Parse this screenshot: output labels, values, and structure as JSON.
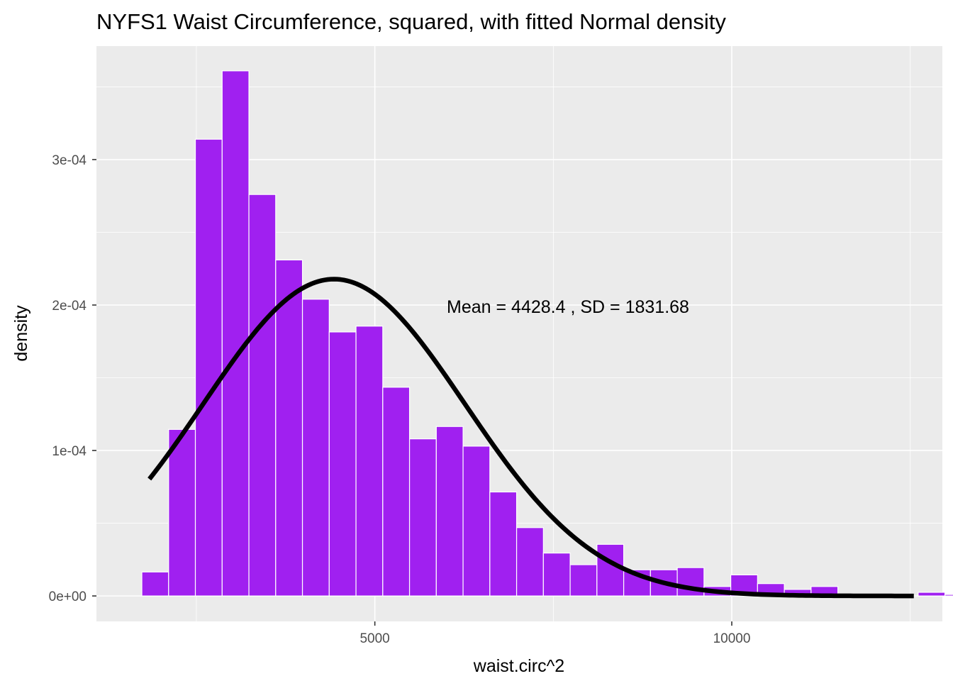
{
  "chart_data": {
    "type": "bar",
    "title": "NYFS1 Waist Circumference, squared, with fitted Normal density",
    "xlabel": "waist.circ^2",
    "ylabel": "density",
    "xlim": [
      1100,
      12950
    ],
    "ylim": [
      -1.75e-05,
      0.000378
    ],
    "x_ticks": [
      {
        "value": 2500,
        "label": ""
      },
      {
        "value": 5000,
        "label": "5000"
      },
      {
        "value": 7500,
        "label": ""
      },
      {
        "value": 10000,
        "label": "10000"
      },
      {
        "value": 12500,
        "label": ""
      }
    ],
    "y_ticks": [
      {
        "value": 0,
        "label": "0e+00"
      },
      {
        "value": 5e-05,
        "label": ""
      },
      {
        "value": 0.0001,
        "label": "1e-04"
      },
      {
        "value": 0.00015,
        "label": ""
      },
      {
        "value": 0.0002,
        "label": "2e-04"
      },
      {
        "value": 0.00025,
        "label": ""
      },
      {
        "value": 0.0003,
        "label": "3e-04"
      },
      {
        "value": 0.00035,
        "label": ""
      }
    ],
    "bin_width": 375,
    "bins": [
      {
        "x0": 1736,
        "value": 1.65e-05
      },
      {
        "x0": 2111,
        "value": 0.0001145
      },
      {
        "x0": 2486,
        "value": 0.000314
      },
      {
        "x0": 2861,
        "value": 0.000361
      },
      {
        "x0": 3236,
        "value": 0.000276
      },
      {
        "x0": 3611,
        "value": 0.000231
      },
      {
        "x0": 3986,
        "value": 0.000204
      },
      {
        "x0": 4361,
        "value": 0.0001815
      },
      {
        "x0": 4736,
        "value": 0.0001855
      },
      {
        "x0": 5111,
        "value": 0.0001435
      },
      {
        "x0": 5486,
        "value": 0.000108
      },
      {
        "x0": 5861,
        "value": 0.0001165
      },
      {
        "x0": 6236,
        "value": 0.000103
      },
      {
        "x0": 6611,
        "value": 7.15e-05
      },
      {
        "x0": 6986,
        "value": 4.7e-05
      },
      {
        "x0": 7361,
        "value": 2.95e-05
      },
      {
        "x0": 7736,
        "value": 2.15e-05
      },
      {
        "x0": 8111,
        "value": 3.55e-05
      },
      {
        "x0": 8486,
        "value": 1.8e-05
      },
      {
        "x0": 8861,
        "value": 1.8e-05
      },
      {
        "x0": 9236,
        "value": 1.95e-05
      },
      {
        "x0": 9611,
        "value": 6.5e-06
      },
      {
        "x0": 9986,
        "value": 1.45e-05
      },
      {
        "x0": 10361,
        "value": 8.5e-06
      },
      {
        "x0": 10736,
        "value": 4.5e-06
      },
      {
        "x0": 11111,
        "value": 6.5e-06
      },
      {
        "x0": 11486,
        "value": 0
      },
      {
        "x0": 11861,
        "value": 0
      },
      {
        "x0": 12236,
        "value": 0
      },
      {
        "x0": 12611,
        "value": 2.5e-06
      },
      {
        "x0": 12986,
        "value": 1e-06
      }
    ],
    "bar_fill": "#a020f0",
    "bar_outline": "#ffffff",
    "normal_fit": {
      "mean": 4428.4,
      "sd": 1831.68,
      "x_from": 1842,
      "x_to": 12550,
      "color": "#000000"
    },
    "annotation": {
      "text": "Mean =  4428.4 , SD =  1831.68",
      "x": 6690,
      "y": 0.000199
    },
    "panel_background": "#ebebeb",
    "grid": true,
    "grid_color": "#ffffff"
  }
}
